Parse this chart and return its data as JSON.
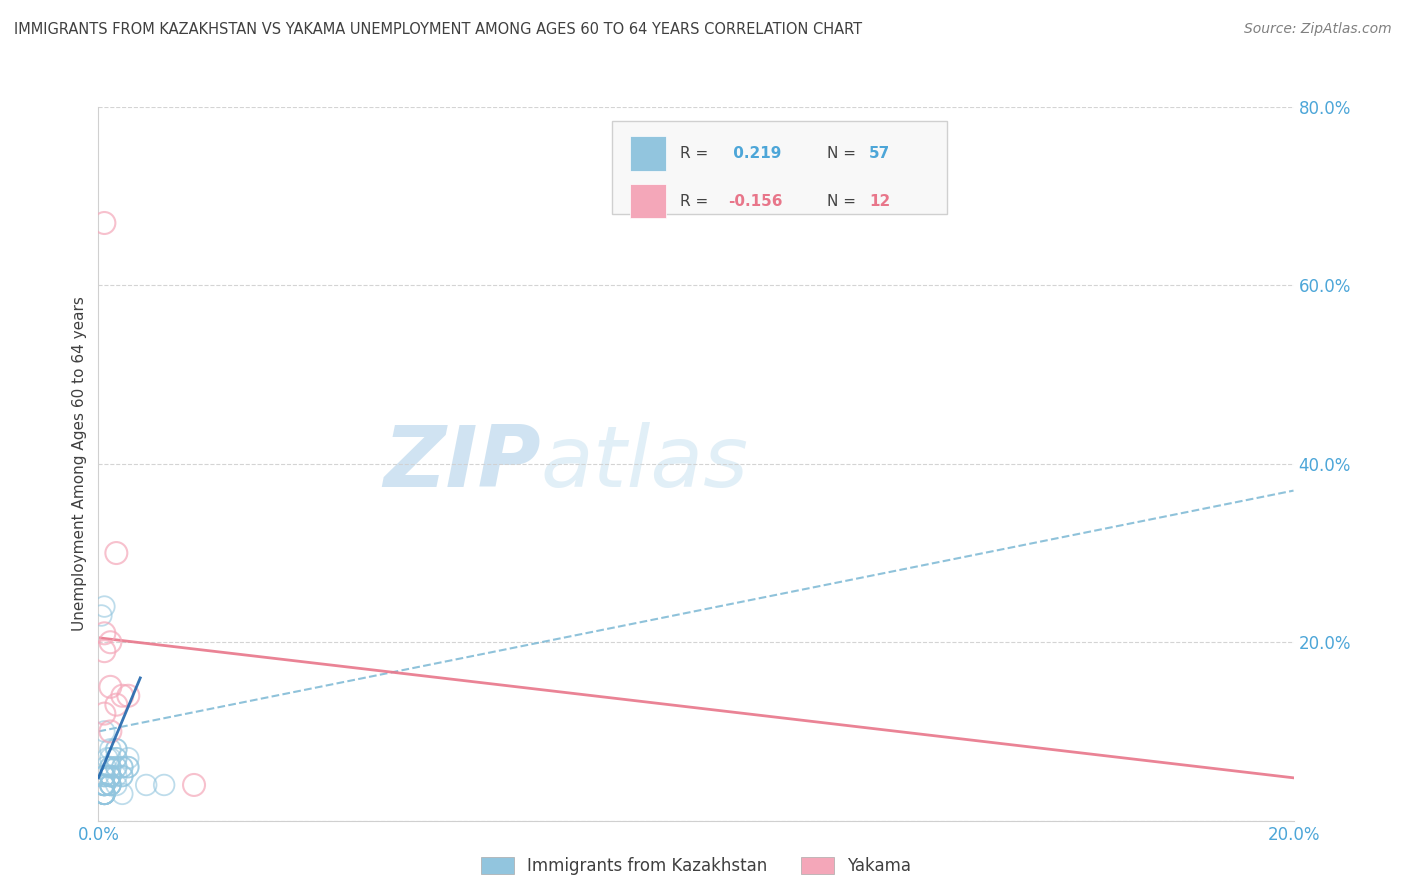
{
  "title": "IMMIGRANTS FROM KAZAKHSTAN VS YAKAMA UNEMPLOYMENT AMONG AGES 60 TO 64 YEARS CORRELATION CHART",
  "source": "Source: ZipAtlas.com",
  "ylabel": "Unemployment Among Ages 60 to 64 years",
  "xlim": [
    0.0,
    0.2
  ],
  "ylim": [
    0.0,
    0.8
  ],
  "x_ticks": [
    0.0,
    0.04,
    0.08,
    0.12,
    0.16,
    0.2
  ],
  "y_ticks": [
    0.0,
    0.2,
    0.4,
    0.6,
    0.8
  ],
  "x_tick_labels": [
    "0.0%",
    "",
    "",
    "",
    "",
    "20.0%"
  ],
  "y_tick_labels": [
    "",
    "20.0%",
    "40.0%",
    "60.0%",
    "80.0%"
  ],
  "color_blue": "#92c5de",
  "color_pink": "#f4a7b9",
  "color_line_blue": "#2166ac",
  "color_line_blue_dash": "#7bb8d4",
  "color_line_pink": "#e8768a",
  "color_grid": "#d0d0d0",
  "color_title": "#404040",
  "color_source": "#808080",
  "color_axis_label": "#404040",
  "color_tick_blue": "#4da6d8",
  "color_watermark_ZIP": "#c8dff0",
  "color_watermark_atlas": "#d8eaf5",
  "blue_scatter_x": [
    0.0005,
    0.001,
    0.0015,
    0.001,
    0.002,
    0.0008,
    0.003,
    0.004,
    0.001,
    0.0012,
    0.002,
    0.003,
    0.005,
    0.001,
    0.002,
    0.003,
    0.004,
    0.001,
    0.002,
    0.001,
    0.001,
    0.002,
    0.003,
    0.001,
    0.002,
    0.004,
    0.001,
    0.002,
    0.001,
    0.003,
    0.001,
    0.002,
    0.005,
    0.001,
    0.002,
    0.001,
    0.003,
    0.002,
    0.001,
    0.004,
    0.001,
    0.002,
    0.001,
    0.003,
    0.002,
    0.001,
    0.002,
    0.001,
    0.005,
    0.001,
    0.002,
    0.001,
    0.003,
    0.001,
    0.004,
    0.008,
    0.011
  ],
  "blue_scatter_y": [
    0.23,
    0.24,
    0.07,
    0.05,
    0.08,
    0.04,
    0.07,
    0.06,
    0.1,
    0.06,
    0.05,
    0.08,
    0.07,
    0.04,
    0.06,
    0.08,
    0.05,
    0.03,
    0.07,
    0.04,
    0.05,
    0.06,
    0.04,
    0.03,
    0.05,
    0.06,
    0.04,
    0.05,
    0.03,
    0.07,
    0.04,
    0.05,
    0.06,
    0.03,
    0.04,
    0.05,
    0.06,
    0.04,
    0.03,
    0.05,
    0.04,
    0.05,
    0.03,
    0.06,
    0.04,
    0.03,
    0.05,
    0.04,
    0.06,
    0.03,
    0.04,
    0.03,
    0.05,
    0.04,
    0.03,
    0.04,
    0.04
  ],
  "pink_scatter_x": [
    0.001,
    0.002,
    0.001,
    0.003,
    0.002,
    0.004,
    0.001,
    0.003,
    0.001,
    0.005,
    0.016,
    0.002
  ],
  "pink_scatter_y": [
    0.21,
    0.2,
    0.67,
    0.3,
    0.15,
    0.14,
    0.12,
    0.13,
    0.19,
    0.14,
    0.04,
    0.1
  ],
  "blue_short_trend_x": [
    0.0,
    0.007
  ],
  "blue_short_trend_y": [
    0.048,
    0.16
  ],
  "blue_dash_trend_x": [
    0.0,
    0.2
  ],
  "blue_dash_trend_y": [
    0.1,
    0.37
  ],
  "pink_trend_x": [
    0.0,
    0.2
  ],
  "pink_trend_y": [
    0.205,
    0.048
  ]
}
